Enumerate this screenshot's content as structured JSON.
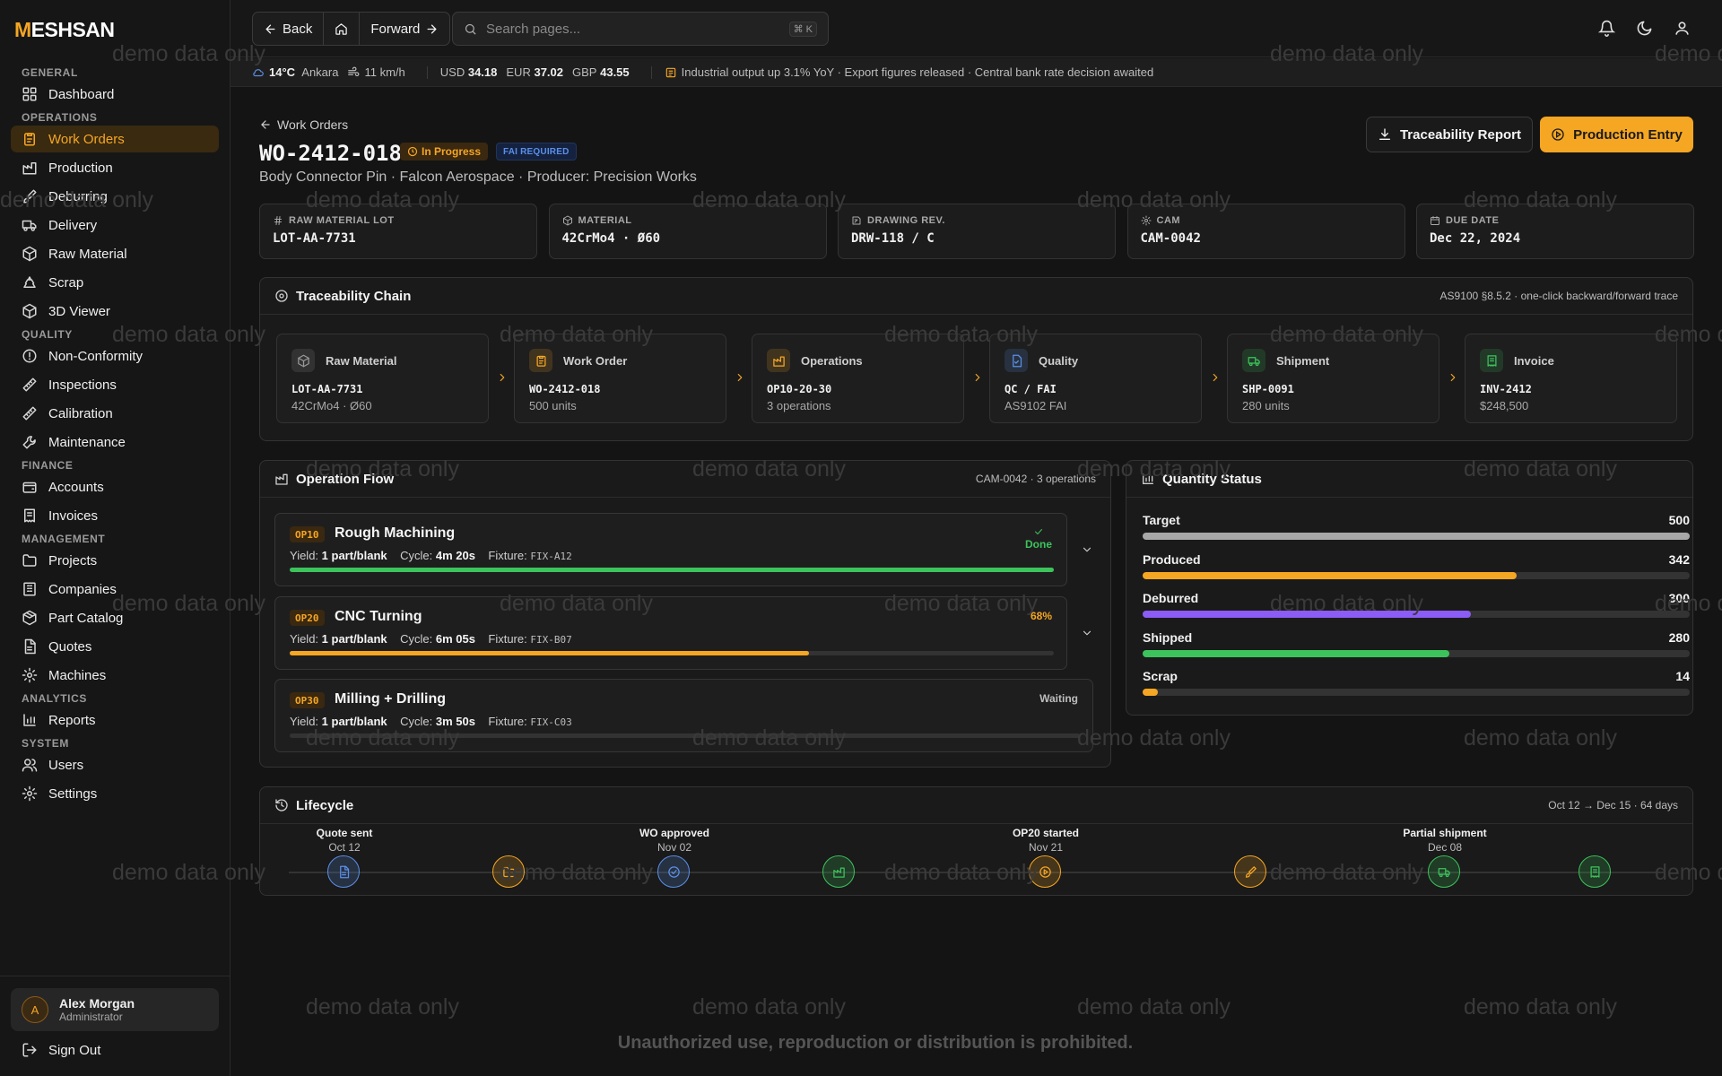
{
  "brand": {
    "logo_accent": "M",
    "logo_rest": "ESHSAN"
  },
  "sidebar": {
    "sections": [
      {
        "title": "GENERAL",
        "items": [
          {
            "label": "Dashboard",
            "icon": "dashboard-icon"
          }
        ]
      },
      {
        "title": "OPERATIONS",
        "items": [
          {
            "label": "Work Orders",
            "icon": "clipboard-icon",
            "active": true
          },
          {
            "label": "Production",
            "icon": "factory-icon"
          },
          {
            "label": "Deburring",
            "icon": "brush-icon"
          },
          {
            "label": "Delivery",
            "icon": "truck-icon"
          },
          {
            "label": "Raw Material",
            "icon": "box-icon"
          },
          {
            "label": "Scrap",
            "icon": "recycle-icon"
          },
          {
            "label": "3D Viewer",
            "icon": "cube-icon"
          }
        ]
      },
      {
        "title": "QUALITY",
        "items": [
          {
            "label": "Non-Conformity",
            "icon": "alert-circle-icon"
          },
          {
            "label": "Inspections",
            "icon": "ruler-icon"
          },
          {
            "label": "Calibration",
            "icon": "ruler-icon"
          },
          {
            "label": "Maintenance",
            "icon": "wrench-icon"
          }
        ]
      },
      {
        "title": "FINANCE",
        "items": [
          {
            "label": "Accounts",
            "icon": "wallet-icon"
          },
          {
            "label": "Invoices",
            "icon": "receipt-icon"
          }
        ]
      },
      {
        "title": "MANAGEMENT",
        "items": [
          {
            "label": "Projects",
            "icon": "folder-icon"
          },
          {
            "label": "Companies",
            "icon": "building-icon"
          },
          {
            "label": "Part Catalog",
            "icon": "package-icon"
          },
          {
            "label": "Quotes",
            "icon": "file-text-icon"
          },
          {
            "label": "Machines",
            "icon": "gear-icon"
          }
        ]
      },
      {
        "title": "ANALYTICS",
        "items": [
          {
            "label": "Reports",
            "icon": "bar-chart-icon"
          }
        ]
      },
      {
        "title": "SYSTEM",
        "items": [
          {
            "label": "Users",
            "icon": "users-icon"
          },
          {
            "label": "Settings",
            "icon": "gear-icon"
          }
        ]
      }
    ],
    "user": {
      "initial": "A",
      "name": "Alex Morgan",
      "role": "Administrator"
    },
    "signout_label": "Sign Out"
  },
  "topbar": {
    "back_label": "Back",
    "forward_label": "Forward",
    "search_placeholder": "Search pages...",
    "search_shortcut": "⌘ K"
  },
  "ticker": {
    "temp": "14°C",
    "city": "Ankara",
    "wind": "11 km/h",
    "usd_label": "USD",
    "usd": "34.18",
    "eur_label": "EUR",
    "eur": "37.02",
    "gbp_label": "GBP",
    "gbp": "43.55",
    "news": "Industrial output up 3.1% YoY · Export figures released · Central bank rate decision awaited"
  },
  "header": {
    "breadcrumb": "Work Orders",
    "title": "WO-2412-018",
    "status": "In Progress",
    "fai_badge": "FAI REQUIRED",
    "subtitle": "Body Connector Pin · Falcon Aerospace · Producer: Precision Works",
    "trace_button": "Traceability Report",
    "production_button": "Production Entry"
  },
  "info_cards": [
    {
      "label": "RAW MATERIAL LOT",
      "value": "LOT-AA-7731",
      "icon": "hash-icon"
    },
    {
      "label": "MATERIAL",
      "value": "42CrMo4 · Ø60",
      "icon": "box-icon"
    },
    {
      "label": "DRAWING REV.",
      "value": "DRW-118 / C",
      "icon": "drawing-icon"
    },
    {
      "label": "CAM",
      "value": "CAM-0042",
      "icon": "gear-icon"
    },
    {
      "label": "DUE DATE",
      "value": "Dec 22, 2024",
      "icon": "calendar-icon"
    }
  ],
  "traceability": {
    "title": "Traceability Chain",
    "meta": "AS9100 §8.5.2 · one-click backward/forward trace",
    "steps": [
      {
        "label": "Raw Material",
        "code": "LOT-AA-7731",
        "sub": "42CrMo4 · Ø60",
        "icon": "box-icon",
        "color": "#9a9a9a"
      },
      {
        "label": "Work Order",
        "code": "WO-2412-018",
        "sub": "500 units",
        "icon": "clipboard-icon",
        "color": "#f5a623"
      },
      {
        "label": "Operations",
        "code": "OP10-20-30",
        "sub": "3 operations",
        "icon": "factory-icon",
        "color": "#f5a623"
      },
      {
        "label": "Quality",
        "code": "QC / FAI",
        "sub": "AS9102 FAI",
        "icon": "file-check-icon",
        "color": "#5b8fe8"
      },
      {
        "label": "Shipment",
        "code": "SHP-0091",
        "sub": "280 units",
        "icon": "truck-icon",
        "color": "#3cc35c"
      },
      {
        "label": "Invoice",
        "code": "INV-2412",
        "sub": "$248,500",
        "icon": "receipt-icon",
        "color": "#3cc35c"
      }
    ]
  },
  "operation_flow": {
    "title": "Operation Flow",
    "meta": "CAM-0042 · 3 operations",
    "yield_label": "Yield:",
    "cycle_label": "Cycle:",
    "fixture_label": "Fixture:",
    "ops": [
      {
        "code": "OP10",
        "name": "Rough Machining",
        "yield": "1 part/blank",
        "cycle": "4m 20s",
        "fixture": "FIX-A12",
        "status": "Done",
        "progress": 1.0,
        "color": "#3cc35c"
      },
      {
        "code": "OP20",
        "name": "CNC Turning",
        "yield": "1 part/blank",
        "cycle": "6m 05s",
        "fixture": "FIX-B07",
        "status": "68%",
        "progress": 0.68,
        "color": "#f5a623"
      },
      {
        "code": "OP30",
        "name": "Milling + Drilling",
        "yield": "1 part/blank",
        "cycle": "3m 50s",
        "fixture": "FIX-C03",
        "status": "Waiting",
        "progress": 0,
        "color": "#9a9a9a"
      }
    ]
  },
  "quantity": {
    "title": "Quantity Status",
    "rows": [
      {
        "label": "Target",
        "value": "500",
        "fraction": 1.0,
        "color": "#a8a8a8"
      },
      {
        "label": "Produced",
        "value": "342",
        "fraction": 0.684,
        "color": "#f5a623"
      },
      {
        "label": "Deburred",
        "value": "300",
        "fraction": 0.6,
        "color": "#8b5cf6"
      },
      {
        "label": "Shipped",
        "value": "280",
        "fraction": 0.56,
        "color": "#3cc35c"
      },
      {
        "label": "Scrap",
        "value": "14",
        "fraction": 0.028,
        "color": "#f5a623"
      }
    ]
  },
  "lifecycle": {
    "title": "Lifecycle",
    "meta": "Oct 12 → Dec 15 · 64 days",
    "events": [
      {
        "title": "Quote sent",
        "date": "Oct 12"
      },
      {
        "title": "WO approved",
        "date": "Nov 02"
      },
      {
        "title": "OP20 started",
        "date": "Nov 21"
      },
      {
        "title": "Partial shipment",
        "date": "Dec 08"
      }
    ],
    "nodes": [
      {
        "icon": "file-text-icon",
        "color": "#5b8fe8"
      },
      {
        "icon": "folder-icon",
        "color": "#f5a623"
      },
      {
        "icon": "check-circle-icon",
        "color": "#5b8fe8"
      },
      {
        "icon": "factory-icon",
        "color": "#3cc35c"
      },
      {
        "icon": "play-circle-icon",
        "color": "#f5a623"
      },
      {
        "icon": "brush-icon",
        "color": "#f5a623"
      },
      {
        "icon": "truck-icon",
        "color": "#3cc35c"
      },
      {
        "icon": "receipt-icon",
        "color": "#3cc35c"
      }
    ]
  },
  "watermark": "demo data only",
  "footer_note": "Unauthorized use, reproduction or distribution is prohibited."
}
